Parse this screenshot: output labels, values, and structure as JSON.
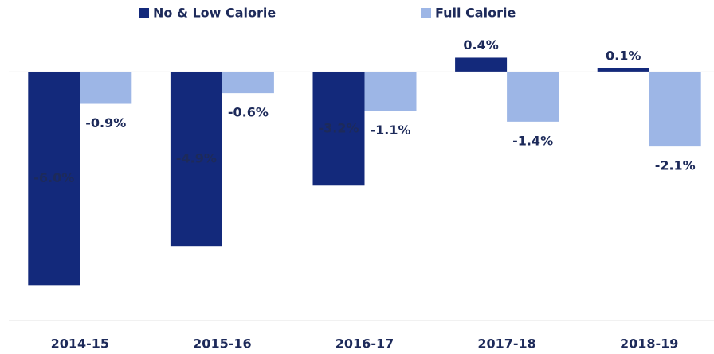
{
  "chart_data": {
    "type": "bar",
    "categories": [
      "2014-15",
      "2015-16",
      "2016-17",
      "2017-18",
      "2018-19"
    ],
    "series": [
      {
        "name": "No & Low Calorie",
        "color": "#13297b",
        "values": [
          -6.0,
          -4.9,
          -3.2,
          0.4,
          0.1
        ],
        "value_labels": [
          "-6.0%",
          "-4.9%",
          "-3.2%",
          "0.4%",
          "0.1%"
        ]
      },
      {
        "name": "Full Calorie",
        "color": "#9db6e6",
        "values": [
          -0.9,
          -0.6,
          -1.1,
          -1.4,
          -2.1
        ],
        "value_labels": [
          "-0.9%",
          "-0.6%",
          "-1.1%",
          "-1.4%",
          "-2.1%"
        ]
      }
    ],
    "ylim": [
      -7,
      0.5
    ],
    "legend": "top"
  }
}
